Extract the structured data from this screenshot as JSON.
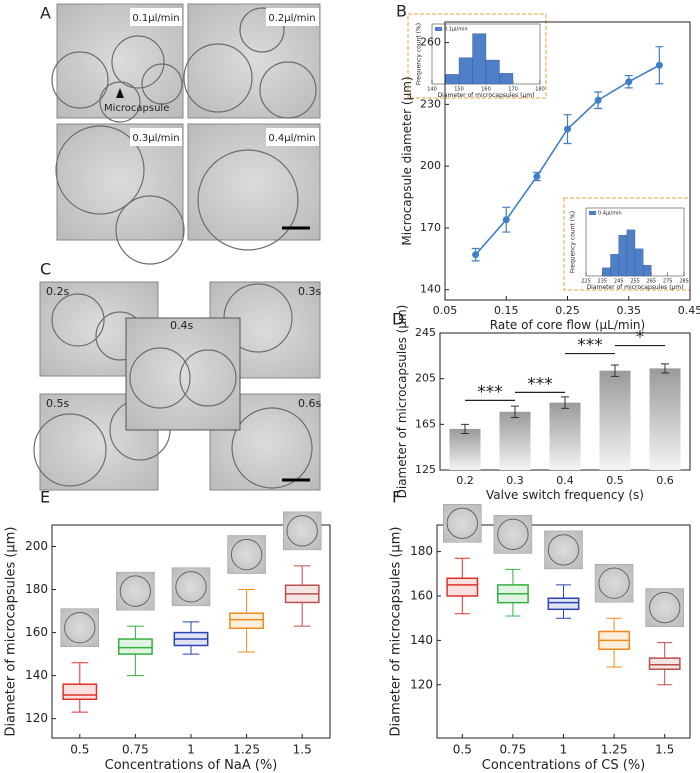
{
  "figure": {
    "panel_labels": [
      "A",
      "B",
      "C",
      "D",
      "E",
      "F"
    ],
    "panel_a": {
      "images": [
        "0.1μl/min",
        "0.2μl/min",
        "0.3μl/min",
        "0.4μl/min"
      ],
      "annotation": "Microcapsule"
    },
    "panel_c": {
      "images": [
        "0.2s",
        "0.3s",
        "0.4s",
        "0.5s",
        "0.6s"
      ]
    }
  },
  "chart_data": [
    {
      "type": "line",
      "x_label": "Rate of core flow (μL/min)",
      "y_label": "Microcapsule diameter (μm)",
      "x": [
        0.1,
        0.15,
        0.2,
        0.25,
        0.3,
        0.35,
        0.4
      ],
      "values": [
        157,
        174,
        195,
        218,
        232,
        241,
        249
      ],
      "errors": [
        3,
        6,
        2,
        7,
        4,
        3,
        9
      ],
      "color": "#3f7fc8",
      "xlim": [
        0.05,
        0.45
      ],
      "xticks": [
        0.05,
        0.15,
        0.25,
        0.35,
        0.45
      ],
      "ylim": [
        135,
        270
      ],
      "yticks": [
        140,
        170,
        200,
        230,
        260
      ]
    },
    {
      "type": "histogram",
      "legend": "0.1μl/min",
      "x_label": "Diameter of microcapsules (μm)",
      "y_label": "Frequency count (%)",
      "bins": [
        145,
        150,
        155,
        160,
        165,
        170
      ],
      "counts": [
        8,
        22,
        42,
        20,
        9
      ],
      "color": "#4f7fc6",
      "xlim": [
        140,
        180
      ],
      "xticks": [
        140,
        150,
        160,
        170,
        180
      ],
      "ylim": [
        0,
        50
      ]
    },
    {
      "type": "histogram",
      "legend": "0.4μl/min",
      "x_label": "Diameter of microcapsules (μm)",
      "y_label": "Frequency count (%)",
      "bins": [
        235,
        240,
        245,
        250,
        255,
        260,
        265
      ],
      "counts": [
        6,
        16,
        30,
        34,
        20,
        8
      ],
      "color": "#4f7fc6",
      "xlim": [
        225,
        285
      ],
      "xticks": [
        225,
        235,
        245,
        255,
        265,
        275,
        285
      ],
      "ylim": [
        0,
        50
      ]
    },
    {
      "type": "bar",
      "x_label": "Valve switch frequency (s)",
      "y_label": "Diameter of microcapsules (μm)",
      "categories": [
        "0.2",
        "0.3",
        "0.4",
        "0.5",
        "0.6"
      ],
      "values": [
        161,
        176,
        184,
        212,
        214
      ],
      "errors": [
        4,
        5,
        5,
        5,
        4
      ],
      "ylim": [
        125,
        245
      ],
      "yticks": [
        125,
        165,
        205,
        245
      ],
      "significance": [
        {
          "between": [
            "0.2",
            "0.3"
          ],
          "y": 186,
          "label": "***"
        },
        {
          "between": [
            "0.3",
            "0.4"
          ],
          "y": 193,
          "label": "***"
        },
        {
          "between": [
            "0.4",
            "0.5"
          ],
          "y": 227,
          "label": "***"
        },
        {
          "between": [
            "0.5",
            "0.6"
          ],
          "y": 234,
          "label": "*"
        }
      ]
    },
    {
      "type": "box",
      "x_label": "Concentrations of NaA (%)",
      "y_label": "Diameter of microcapsules (μm)",
      "categories": [
        "0.5",
        "0.75",
        "1",
        "1.25",
        "1.5"
      ],
      "boxes": [
        {
          "color": "#e0302a",
          "whisker_low": 123,
          "q1": 129,
          "median": 131,
          "q3": 136,
          "whisker_high": 146
        },
        {
          "color": "#35b040",
          "whisker_low": 140,
          "q1": 150,
          "median": 153,
          "q3": 157,
          "whisker_high": 163
        },
        {
          "color": "#2b44b0",
          "whisker_low": 150,
          "q1": 154,
          "median": 157,
          "q3": 160,
          "whisker_high": 165
        },
        {
          "color": "#f08a1c",
          "whisker_low": 151,
          "q1": 162,
          "median": 166,
          "q3": 169,
          "whisker_high": 180
        },
        {
          "color": "#b8504a",
          "whisker_low": 163,
          "q1": 174,
          "median": 178,
          "q3": 182,
          "whisker_high": 191
        }
      ],
      "ylim": [
        111,
        210
      ],
      "yticks": [
        120,
        140,
        160,
        180,
        200
      ]
    },
    {
      "type": "box",
      "x_label": "Concentrations of CS (%)",
      "y_label": "Diameter of microcapsules (μm)",
      "categories": [
        "0.5",
        "0.75",
        "1",
        "1.25",
        "1.5"
      ],
      "boxes": [
        {
          "color": "#e0302a",
          "whisker_low": 152,
          "q1": 160,
          "median": 165,
          "q3": 168,
          "whisker_high": 177
        },
        {
          "color": "#35b040",
          "whisker_low": 151,
          "q1": 157,
          "median": 161,
          "q3": 165,
          "whisker_high": 172
        },
        {
          "color": "#2b44b0",
          "whisker_low": 150,
          "q1": 154,
          "median": 157,
          "q3": 159,
          "whisker_high": 165
        },
        {
          "color": "#f08a1c",
          "whisker_low": 128,
          "q1": 136,
          "median": 140,
          "q3": 144,
          "whisker_high": 150
        },
        {
          "color": "#b8504a",
          "whisker_low": 120,
          "q1": 127,
          "median": 129,
          "q3": 132,
          "whisker_high": 139
        }
      ],
      "ylim": [
        96,
        192
      ],
      "yticks": [
        120,
        140,
        160,
        180
      ]
    }
  ]
}
